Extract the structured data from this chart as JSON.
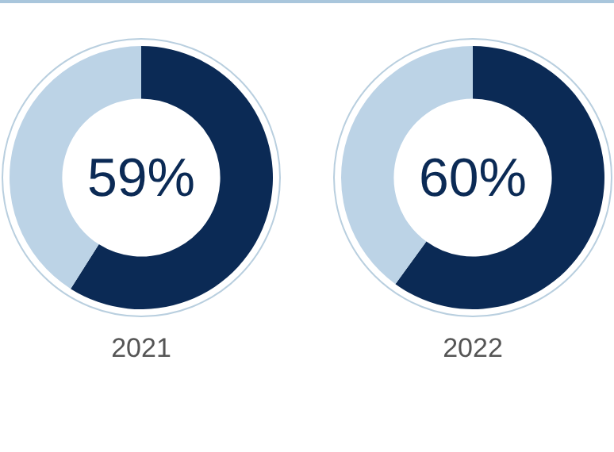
{
  "chart_data": [
    {
      "type": "donut",
      "title": "2021",
      "categories": [
        null,
        null
      ],
      "values": [
        59,
        41
      ],
      "colors": [
        "#0b2a55",
        "#bcd3e6"
      ],
      "value_labels": [
        "59%",
        null
      ]
    },
    {
      "type": "donut",
      "title": "2022",
      "categories": [
        null,
        null
      ],
      "values": [
        60,
        40
      ],
      "colors": [
        "#0b2a55",
        "#bcd3e6"
      ],
      "value_labels": [
        "60%",
        null
      ]
    }
  ]
}
